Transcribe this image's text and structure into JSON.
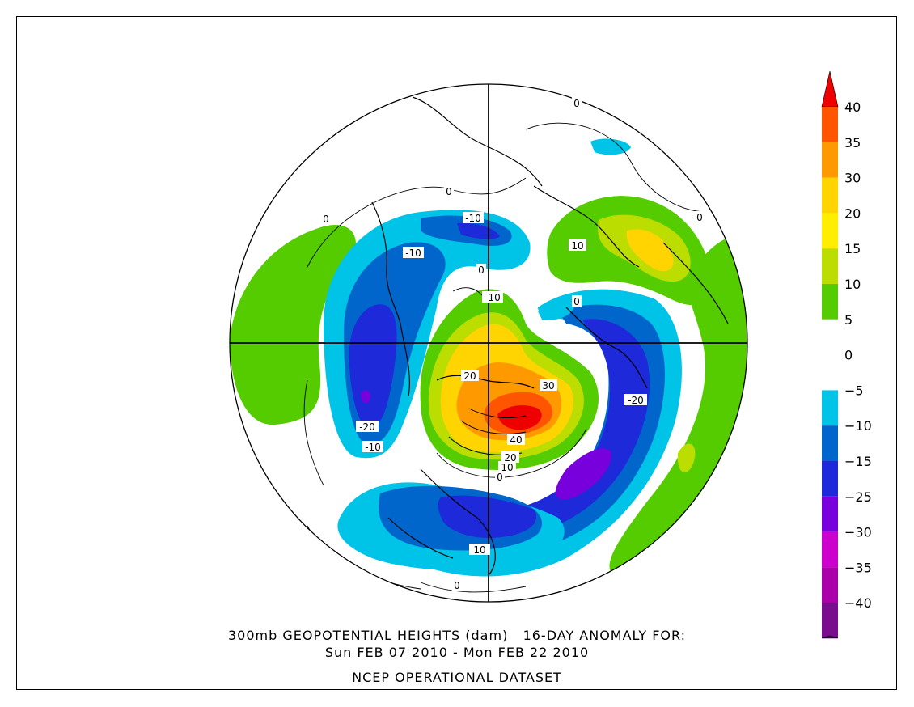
{
  "title": {
    "line1": "300mb GEOPOTENTIAL HEIGHTS (dam)   16-DAY ANOMALY FOR:",
    "line2": "Sun FEB 07 2010 - Mon FEB 22 2010",
    "line3": "NCEP OPERATIONAL DATASET"
  },
  "colorbar": {
    "levels": [
      {
        "label": "40",
        "color": "#ee0000"
      },
      {
        "label": "35",
        "color": "#ff5500"
      },
      {
        "label": "30",
        "color": "#ff9900"
      },
      {
        "label": "20",
        "color": "#ffd400"
      },
      {
        "label": "15",
        "color": "#ffee00"
      },
      {
        "label": "10",
        "color": "#bbdd00"
      },
      {
        "label": "5",
        "color": "#55cc00"
      },
      {
        "label": "0",
        "color": "#ffffff"
      },
      {
        "label": "-5",
        "color": "#00c3e8"
      },
      {
        "label": "-10",
        "color": "#0066cc"
      },
      {
        "label": "-15",
        "color": "#1e2ad9"
      },
      {
        "label": "-25",
        "color": "#7700dd"
      },
      {
        "label": "-30",
        "color": "#cc00cc"
      },
      {
        "label": "-35",
        "color": "#aa00aa"
      },
      {
        "label": "-40",
        "color": "#7a0d8e"
      }
    ],
    "top_arrow_color": "#ee0000",
    "bottom_arrow_color": "#4a0060",
    "band_colors": [
      "#ff5500",
      "#ff9900",
      "#ffd400",
      "#ffee00",
      "#bbdd00",
      "#55cc00",
      "#ffffff",
      "#ffffff",
      "#00c3e8",
      "#0066cc",
      "#1e2ad9",
      "#7700dd",
      "#cc00cc",
      "#aa00aa",
      "#7a0d8e"
    ]
  },
  "contour_labels": [
    {
      "id": "lbl-neg10-a",
      "text": "-10"
    },
    {
      "id": "lbl-neg10-b",
      "text": "-10"
    },
    {
      "id": "lbl-neg10-c",
      "text": "-10"
    },
    {
      "id": "lbl-neg20-a",
      "text": "-20"
    },
    {
      "id": "lbl-neg20-b",
      "text": "-20"
    },
    {
      "id": "lbl-neg10-d",
      "text": "-10"
    },
    {
      "id": "lbl-10-a",
      "text": "10"
    },
    {
      "id": "lbl-10-b",
      "text": "10"
    },
    {
      "id": "lbl-10-c",
      "text": "10"
    },
    {
      "id": "lbl-20-a",
      "text": "20"
    },
    {
      "id": "lbl-20-b",
      "text": "20"
    },
    {
      "id": "lbl-30",
      "text": "30"
    },
    {
      "id": "lbl-40",
      "text": "40"
    },
    {
      "id": "lbl-0-a",
      "text": "0"
    },
    {
      "id": "lbl-0-b",
      "text": "0"
    },
    {
      "id": "lbl-0-c",
      "text": "0"
    },
    {
      "id": "lbl-0-d",
      "text": "0"
    },
    {
      "id": "lbl-0-e",
      "text": "0"
    },
    {
      "id": "lbl-0-f",
      "text": "0"
    },
    {
      "id": "lbl-0-g",
      "text": "0"
    },
    {
      "id": "lbl-0-h",
      "text": "0"
    }
  ]
}
